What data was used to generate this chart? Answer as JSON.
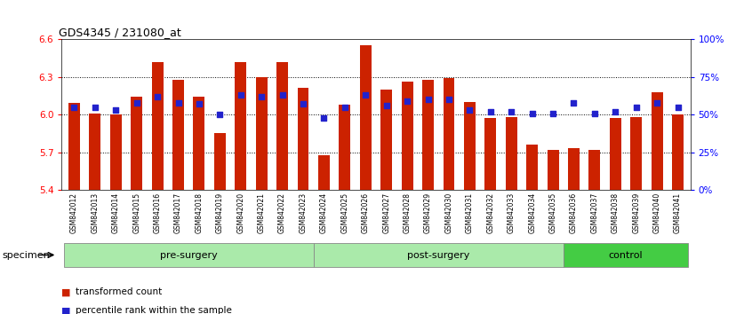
{
  "title": "GDS4345 / 231080_at",
  "samples": [
    "GSM842012",
    "GSM842013",
    "GSM842014",
    "GSM842015",
    "GSM842016",
    "GSM842017",
    "GSM842018",
    "GSM842019",
    "GSM842020",
    "GSM842021",
    "GSM842022",
    "GSM842023",
    "GSM842024",
    "GSM842025",
    "GSM842026",
    "GSM842027",
    "GSM842028",
    "GSM842029",
    "GSM842030",
    "GSM842031",
    "GSM842032",
    "GSM842033",
    "GSM842034",
    "GSM842035",
    "GSM842036",
    "GSM842037",
    "GSM842038",
    "GSM842039",
    "GSM842040",
    "GSM842041"
  ],
  "bar_values": [
    6.09,
    6.01,
    6.0,
    6.14,
    6.42,
    6.28,
    6.14,
    5.85,
    6.42,
    6.3,
    6.42,
    6.21,
    5.68,
    6.08,
    6.55,
    6.2,
    6.26,
    6.28,
    6.29,
    6.1,
    5.97,
    5.98,
    5.76,
    5.72,
    5.73,
    5.72,
    5.97,
    5.98,
    6.18,
    6.0
  ],
  "percentile_values": [
    55,
    55,
    53,
    58,
    62,
    58,
    57,
    50,
    63,
    62,
    63,
    57,
    48,
    55,
    63,
    56,
    59,
    60,
    60,
    53,
    52,
    52,
    51,
    51,
    58,
    51,
    52,
    55,
    58,
    55
  ],
  "groups": [
    {
      "label": "pre-surgery",
      "start": 0,
      "end": 12
    },
    {
      "label": "post-surgery",
      "start": 12,
      "end": 24
    },
    {
      "label": "control",
      "start": 24,
      "end": 30
    }
  ],
  "group_colors": [
    "#aaeaaa",
    "#aaeaaa",
    "#44cc44"
  ],
  "ymin": 5.4,
  "ymax": 6.6,
  "yticks": [
    5.4,
    5.7,
    6.0,
    6.3,
    6.6
  ],
  "right_yticks": [
    0,
    25,
    50,
    75,
    100
  ],
  "right_ytick_labels": [
    "0%",
    "25%",
    "50%",
    "75%",
    "100%"
  ],
  "bar_color": "#cc2200",
  "dot_color": "#2222cc",
  "legend_bar_label": "transformed count",
  "legend_dot_label": "percentile rank within the sample",
  "specimen_label": "specimen",
  "xtick_bg": "#d8d8d8",
  "group_border": "#888888"
}
